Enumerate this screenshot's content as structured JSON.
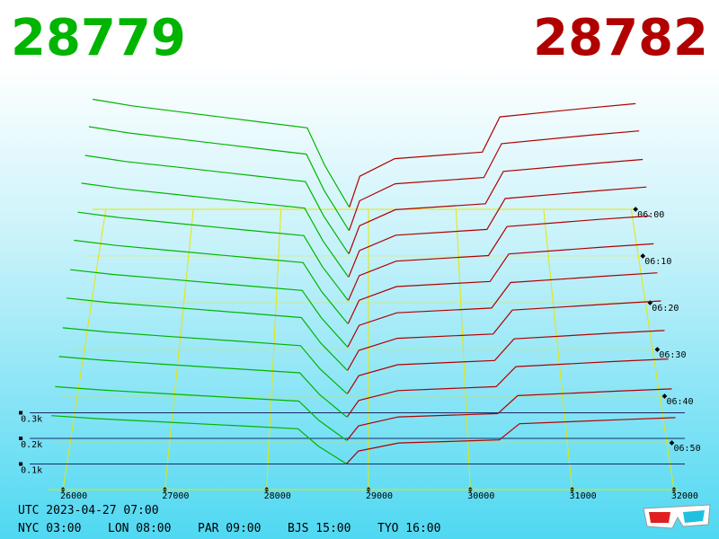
{
  "header": {
    "bid": 28779,
    "ask": 28782
  },
  "chart_data": {
    "type": "depth3d",
    "xlim": [
      25850,
      32050
    ],
    "xticks": [
      26000,
      27000,
      28000,
      29000,
      30000,
      31000,
      32000
    ],
    "zlim": [
      0,
      500
    ],
    "zticks": [
      {
        "value": 100,
        "label": "0.1k"
      },
      {
        "value": 200,
        "label": "0.2k"
      },
      {
        "value": 300,
        "label": "0.3k"
      }
    ],
    "tlim": [
      0,
      60
    ],
    "tticks": [
      {
        "value": 0,
        "label": "06:00"
      },
      {
        "value": 10,
        "label": "06:10"
      },
      {
        "value": 20,
        "label": "06:20"
      },
      {
        "value": 30,
        "label": "06:30"
      },
      {
        "value": 40,
        "label": "06:40"
      },
      {
        "value": 50,
        "label": "06:50"
      }
    ],
    "bid_color": "#00b400",
    "ask_color": "#b00000",
    "grid_color": "#e6e600",
    "bid_prices": [
      25850,
      26300,
      26900,
      27700,
      28300,
      28500,
      28779
    ],
    "ask_prices": [
      28782,
      28900,
      29300,
      30300,
      30500,
      31500,
      32050
    ],
    "slices": [
      {
        "t": 0,
        "bids": [
          500,
          470,
          440,
          400,
          370,
          200,
          10
        ],
        "asks": [
          10,
          150,
          230,
          260,
          420,
          460,
          480
        ]
      },
      {
        "t": 5,
        "bids": [
          475,
          447,
          418,
          380,
          352,
          190,
          10
        ],
        "asks": [
          10,
          143,
          219,
          247,
          399,
          437,
          456
        ]
      },
      {
        "t": 10,
        "bids": [
          445,
          418,
          392,
          356,
          329,
          178,
          10
        ],
        "asks": [
          10,
          134,
          205,
          231,
          374,
          409,
          427
        ]
      },
      {
        "t": 15,
        "bids": [
          420,
          395,
          370,
          336,
          311,
          168,
          10
        ],
        "asks": [
          10,
          126,
          193,
          218,
          353,
          386,
          403
        ]
      },
      {
        "t": 20,
        "bids": [
          390,
          367,
          343,
          312,
          289,
          156,
          10
        ],
        "asks": [
          10,
          117,
          179,
          203,
          328,
          359,
          374
        ]
      },
      {
        "t": 25,
        "bids": [
          365,
          343,
          321,
          292,
          270,
          146,
          10
        ],
        "asks": [
          10,
          110,
          168,
          190,
          307,
          336,
          350
        ]
      },
      {
        "t": 30,
        "bids": [
          335,
          315,
          295,
          268,
          248,
          134,
          10
        ],
        "asks": [
          10,
          101,
          154,
          174,
          281,
          308,
          322
        ]
      },
      {
        "t": 35,
        "bids": [
          310,
          291,
          273,
          248,
          229,
          124,
          10
        ],
        "asks": [
          10,
          93,
          143,
          161,
          260,
          285,
          298
        ]
      },
      {
        "t": 40,
        "bids": [
          280,
          263,
          246,
          224,
          207,
          112,
          10
        ],
        "asks": [
          10,
          84,
          129,
          146,
          235,
          258,
          269
        ]
      },
      {
        "t": 45,
        "bids": [
          255,
          240,
          224,
          204,
          189,
          102,
          10
        ],
        "asks": [
          10,
          77,
          117,
          133,
          214,
          235,
          245
        ]
      },
      {
        "t": 50,
        "bids": [
          225,
          212,
          198,
          180,
          167,
          90,
          10
        ],
        "asks": [
          10,
          68,
          104,
          117,
          189,
          207,
          216
        ]
      },
      {
        "t": 55,
        "bids": [
          200,
          188,
          176,
          160,
          148,
          80,
          10
        ],
        "asks": [
          10,
          60,
          92,
          104,
          168,
          184,
          192
        ]
      }
    ]
  },
  "footer": {
    "utc": "UTC 2023-04-27 07:00",
    "clocks": [
      "NYC 03:00",
      "LON 08:00",
      "PAR 09:00",
      "BJS 15:00",
      "TYO 16:00"
    ]
  }
}
